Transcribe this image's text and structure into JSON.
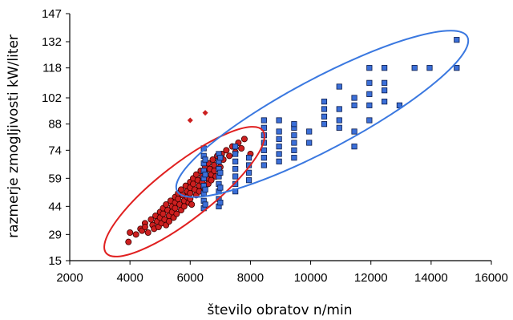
{
  "chart_data": {
    "type": "scatter",
    "xlabel": "število obratov n/min",
    "ylabel": "razmerje zmogljivosti kW/liter",
    "xlim": [
      2000,
      16000
    ],
    "ylim": [
      15,
      147
    ],
    "x_ticks": [
      "2000",
      "4000",
      "6000",
      "8000",
      "10000",
      "12000",
      "14000",
      "16000"
    ],
    "y_ticks": [
      "15",
      "29",
      "44",
      "59",
      "74",
      "88",
      "102",
      "118",
      "132",
      "147"
    ],
    "grid": false,
    "legend": "none",
    "colors": {
      "red": "#cc1f1f",
      "blue": "#3b6fd8",
      "red_ellipse": "#e02020",
      "blue_ellipse": "#3a78e0"
    },
    "series": [
      {
        "marker": "circle",
        "color": "#cc1f1f",
        "points": [
          [
            3950,
            25
          ],
          [
            4000,
            30
          ],
          [
            4200,
            29
          ],
          [
            4350,
            32
          ],
          [
            4400,
            31
          ],
          [
            4500,
            35
          ],
          [
            4500,
            33
          ],
          [
            4600,
            30
          ],
          [
            4700,
            37
          ],
          [
            4750,
            34
          ],
          [
            4800,
            32
          ],
          [
            4850,
            39
          ],
          [
            4900,
            36
          ],
          [
            4950,
            33
          ],
          [
            5000,
            41
          ],
          [
            5000,
            38
          ],
          [
            5050,
            35
          ],
          [
            5100,
            43
          ],
          [
            5100,
            40
          ],
          [
            5150,
            37
          ],
          [
            5200,
            34
          ],
          [
            5200,
            45
          ],
          [
            5250,
            42
          ],
          [
            5300,
            39
          ],
          [
            5300,
            36
          ],
          [
            5350,
            47
          ],
          [
            5400,
            44
          ],
          [
            5400,
            41
          ],
          [
            5450,
            38
          ],
          [
            5500,
            49
          ],
          [
            5500,
            46
          ],
          [
            5500,
            43
          ],
          [
            5550,
            40
          ],
          [
            5600,
            51
          ],
          [
            5600,
            48
          ],
          [
            5650,
            45
          ],
          [
            5700,
            42
          ],
          [
            5700,
            53
          ],
          [
            5750,
            50
          ],
          [
            5800,
            47
          ],
          [
            5800,
            44
          ],
          [
            5850,
            55
          ],
          [
            5900,
            52
          ],
          [
            5900,
            49
          ],
          [
            5950,
            46
          ],
          [
            6000,
            57
          ],
          [
            6000,
            54
          ],
          [
            6000,
            51
          ],
          [
            6000,
            48
          ],
          [
            6050,
            45
          ],
          [
            6100,
            59
          ],
          [
            6100,
            56
          ],
          [
            6150,
            53
          ],
          [
            6200,
            50
          ],
          [
            6200,
            61
          ],
          [
            6250,
            58
          ],
          [
            6300,
            55
          ],
          [
            6300,
            52
          ],
          [
            6350,
            63
          ],
          [
            6400,
            60
          ],
          [
            6400,
            57
          ],
          [
            6450,
            54
          ],
          [
            6500,
            65
          ],
          [
            6500,
            62
          ],
          [
            6550,
            59
          ],
          [
            6600,
            56
          ],
          [
            6600,
            67
          ],
          [
            6650,
            64
          ],
          [
            6700,
            61
          ],
          [
            6700,
            58
          ],
          [
            6750,
            69
          ],
          [
            6800,
            66
          ],
          [
            6800,
            63
          ],
          [
            6850,
            60
          ],
          [
            6900,
            71
          ],
          [
            6950,
            68
          ],
          [
            7000,
            65
          ],
          [
            7050,
            72
          ],
          [
            7100,
            69
          ],
          [
            7200,
            74
          ],
          [
            7300,
            71
          ],
          [
            7400,
            76
          ],
          [
            7500,
            73
          ],
          [
            7600,
            78
          ],
          [
            7700,
            75
          ],
          [
            7800,
            80
          ],
          [
            8000,
            72
          ],
          [
            6000,
            90
          ],
          [
            6500,
            94
          ]
        ]
      },
      {
        "marker": "square",
        "color": "#3b6fd8",
        "points": [
          [
            6450,
            43
          ],
          [
            6450,
            47
          ],
          [
            6450,
            51
          ],
          [
            6450,
            55
          ],
          [
            6450,
            59
          ],
          [
            6450,
            63
          ],
          [
            6450,
            67
          ],
          [
            6450,
            71
          ],
          [
            6450,
            75
          ],
          [
            6500,
            45
          ],
          [
            6500,
            53
          ],
          [
            6500,
            61
          ],
          [
            6500,
            69
          ],
          [
            6950,
            44
          ],
          [
            6950,
            48
          ],
          [
            6950,
            52
          ],
          [
            6950,
            56
          ],
          [
            6950,
            60
          ],
          [
            6950,
            64
          ],
          [
            6950,
            68
          ],
          [
            6950,
            72
          ],
          [
            7000,
            46
          ],
          [
            7000,
            54
          ],
          [
            7000,
            62
          ],
          [
            7000,
            70
          ],
          [
            7500,
            52
          ],
          [
            7500,
            56
          ],
          [
            7500,
            60
          ],
          [
            7500,
            64
          ],
          [
            7500,
            68
          ],
          [
            7500,
            72
          ],
          [
            7500,
            76
          ],
          [
            7950,
            58
          ],
          [
            7950,
            62
          ],
          [
            7950,
            66
          ],
          [
            7950,
            70
          ],
          [
            8450,
            66
          ],
          [
            8450,
            70
          ],
          [
            8450,
            74
          ],
          [
            8450,
            78
          ],
          [
            8450,
            82
          ],
          [
            8450,
            86
          ],
          [
            8450,
            90
          ],
          [
            8950,
            68
          ],
          [
            8950,
            72
          ],
          [
            8950,
            76
          ],
          [
            8950,
            80
          ],
          [
            8950,
            84
          ],
          [
            8950,
            90
          ],
          [
            9450,
            70
          ],
          [
            9450,
            74
          ],
          [
            9450,
            78
          ],
          [
            9450,
            82
          ],
          [
            9450,
            86
          ],
          [
            9450,
            88
          ],
          [
            9950,
            78
          ],
          [
            9950,
            84
          ],
          [
            10450,
            88
          ],
          [
            10450,
            92
          ],
          [
            10450,
            96
          ],
          [
            10450,
            100
          ],
          [
            10950,
            86
          ],
          [
            10950,
            90
          ],
          [
            10950,
            96
          ],
          [
            10950,
            108
          ],
          [
            11450,
            76
          ],
          [
            11450,
            84
          ],
          [
            11450,
            98
          ],
          [
            11450,
            102
          ],
          [
            11950,
            90
          ],
          [
            11950,
            98
          ],
          [
            11950,
            104
          ],
          [
            11950,
            110
          ],
          [
            11950,
            118
          ],
          [
            12450,
            100
          ],
          [
            12450,
            106
          ],
          [
            12450,
            110
          ],
          [
            12450,
            118
          ],
          [
            12950,
            98
          ],
          [
            13450,
            118
          ],
          [
            13950,
            118
          ],
          [
            14850,
            118
          ],
          [
            14850,
            133
          ]
        ]
      }
    ]
  }
}
